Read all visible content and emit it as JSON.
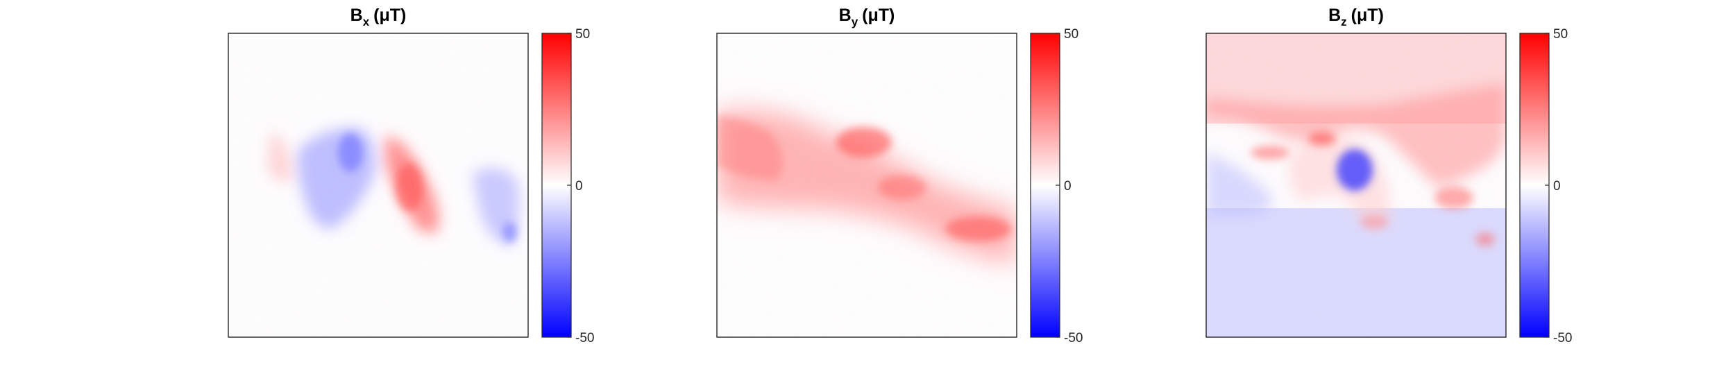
{
  "figure": {
    "panels": [
      {
        "id": "bx",
        "title": {
          "symbol": "B",
          "sub": "x",
          "unit": "(μT)"
        },
        "colorbar": {
          "ticks": [
            "50",
            "0",
            "-50"
          ]
        }
      },
      {
        "id": "by",
        "title": {
          "symbol": "B",
          "sub": "y",
          "unit": "(μT)"
        },
        "colorbar": {
          "ticks": [
            "50",
            "0",
            "-50"
          ]
        }
      },
      {
        "id": "bz",
        "title": {
          "symbol": "B",
          "sub": "z",
          "unit": "(μT)"
        },
        "colorbar": {
          "ticks": [
            "50",
            "0",
            "-50"
          ]
        }
      }
    ]
  },
  "chart_data": [
    {
      "type": "heatmap",
      "title": "Bx (μT)",
      "colormap": {
        "low": "#0000ff",
        "mid": "#ffffff",
        "high": "#ff0000"
      },
      "clim": [
        -50,
        50
      ],
      "grid": false,
      "features": [
        {
          "kind": "band",
          "value": -12,
          "region": "center-left",
          "description": ""
        },
        {
          "kind": "band",
          "value": 25,
          "region": "center",
          "description": ""
        },
        {
          "kind": "band",
          "value": -12,
          "region": "right",
          "description": ""
        }
      ]
    },
    {
      "type": "heatmap",
      "title": "By (μT)",
      "colormap": {
        "low": "#0000ff",
        "mid": "#ffffff",
        "high": "#ff0000"
      },
      "clim": [
        -50,
        50
      ],
      "grid": false,
      "features": [
        {
          "kind": "band",
          "value": 18,
          "region": "diagonal band",
          "description": ""
        }
      ]
    },
    {
      "type": "heatmap",
      "title": "Bz (μT)",
      "colormap": {
        "low": "#0000ff",
        "mid": "#ffffff",
        "high": "#ff0000"
      },
      "clim": [
        -50,
        50
      ],
      "grid": false,
      "features": [
        {
          "kind": "region",
          "value": 10,
          "region": "top half"
        },
        {
          "kind": "region",
          "value": -10,
          "region": "bottom half"
        },
        {
          "kind": "band",
          "value": 25,
          "region": "boundary"
        },
        {
          "kind": "spot",
          "value": -45,
          "region": "center"
        }
      ]
    }
  ]
}
